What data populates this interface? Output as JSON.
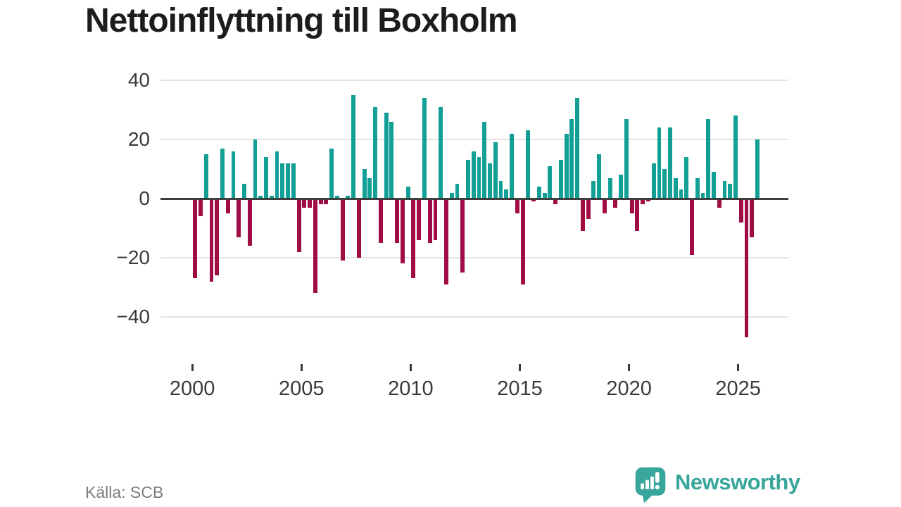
{
  "header": {
    "title": "Nettoinflyttning till Boxholm"
  },
  "footer": {
    "source": "Källa: SCB",
    "logo_text": "Newsworthy"
  },
  "colors": {
    "positive_bar": "#12a096",
    "negative_bar": "#a00d44",
    "logo_teal": "#39a69b",
    "grid": "#e4e4e4",
    "zero_axis": "#3e3e3e",
    "tick_text": "#3a3a3a",
    "title_text": "#1c1c1c",
    "source_text": "#7d7d7d"
  },
  "chart_data": {
    "type": "bar",
    "title": "Nettoinflyttning till Boxholm",
    "source": "Källa: SCB",
    "frequency": "quarterly",
    "start_period": "2000-Q1",
    "end_period": "2025-Q4",
    "grid": "horizontal",
    "y_ticks": [
      40,
      20,
      0,
      -20,
      -40
    ],
    "ylim": [
      -55,
      43
    ],
    "x_tick_labels": [
      "2000",
      "2005",
      "2010",
      "2015",
      "2020",
      "2025"
    ],
    "series": [
      {
        "name": "Nettoinflyttning",
        "values": [
          -27,
          -6,
          15,
          -28,
          -26,
          17,
          -5,
          16,
          -13,
          5,
          -16,
          20,
          1,
          14,
          1,
          16,
          12,
          12,
          12,
          -18,
          -3,
          -3,
          -32,
          -2,
          -2,
          17,
          1,
          -21,
          1,
          35,
          -20,
          10,
          7,
          31,
          -15,
          29,
          26,
          -15,
          -22,
          4,
          -27,
          -14,
          34,
          -15,
          -14,
          31,
          -29,
          2,
          5,
          -25,
          13,
          16,
          14,
          26,
          12,
          19,
          6,
          3,
          22,
          -5,
          -29,
          23,
          -1,
          4,
          2,
          11,
          -2,
          13,
          22,
          27,
          34,
          -11,
          -7,
          6,
          15,
          -5,
          7,
          -3,
          8,
          27,
          -5,
          -11,
          -2,
          -1,
          12,
          24,
          10,
          24,
          7,
          3,
          14,
          -19,
          7,
          2,
          27,
          9,
          -3,
          6,
          5,
          28,
          -8,
          -47,
          -13,
          20
        ]
      }
    ]
  }
}
